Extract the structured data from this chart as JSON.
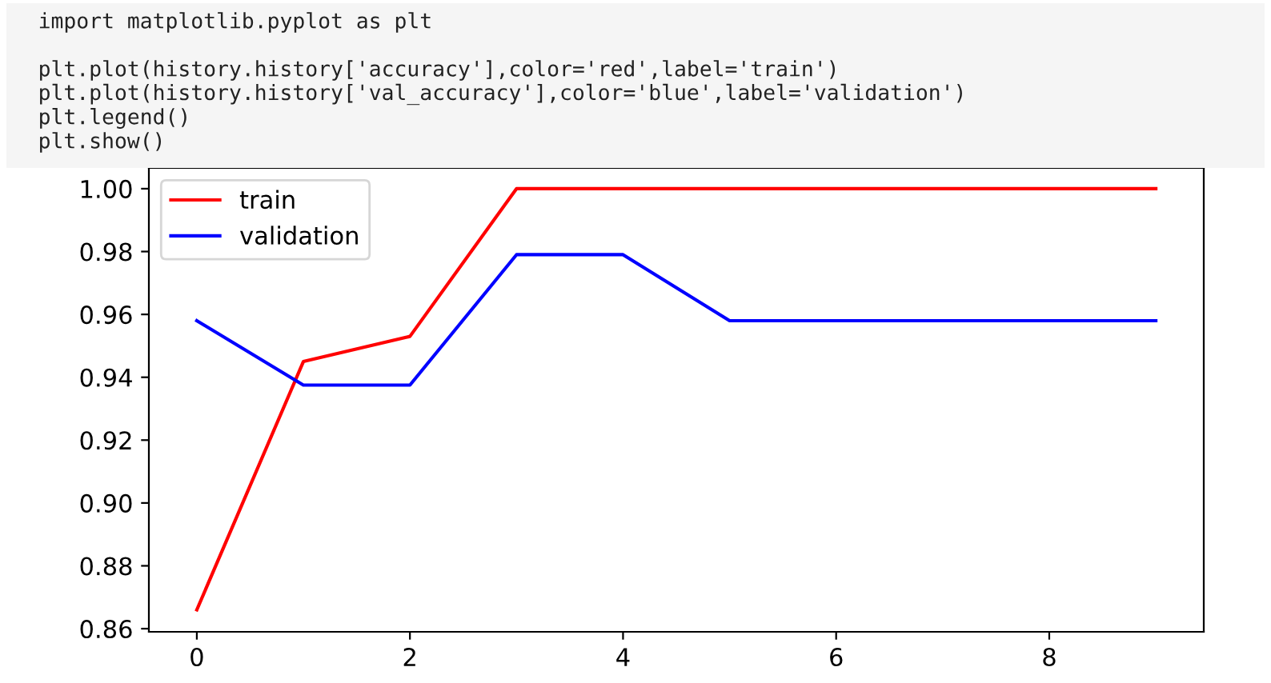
{
  "chart_data": {
    "type": "line",
    "annotations": [
      "import matplotlib.pyplot as plt",
      "plt.plot(history.history['accuracy'],color='red',label='train')",
      "plt.plot(history.history['val_accuracy'],color='blue',label='validation')",
      "plt.legend()",
      "plt.show()"
    ],
    "x": [
      0,
      1,
      2,
      3,
      4,
      5,
      6,
      7,
      8,
      9
    ],
    "series": [
      {
        "name": "train",
        "color": "#ff0000",
        "values": [
          0.866,
          0.945,
          0.953,
          1.0,
          1.0,
          1.0,
          1.0,
          1.0,
          1.0,
          1.0
        ]
      },
      {
        "name": "validation",
        "color": "#0000ff",
        "values": [
          0.958,
          0.9375,
          0.9375,
          0.979,
          0.979,
          0.958,
          0.958,
          0.958,
          0.958,
          0.958
        ]
      }
    ],
    "xlim": [
      -0.45,
      9.45
    ],
    "ylim": [
      0.859,
      1.0066
    ],
    "xticks": [
      0,
      2,
      4,
      6,
      8
    ],
    "yticks": [
      0.86,
      0.88,
      {
        "value": 0.9,
        "label": "0.90"
      },
      0.92,
      0.94,
      0.96,
      0.98,
      {
        "value": 1.0,
        "label": "1.00"
      }
    ],
    "legend": "top left",
    "grid": false
  }
}
